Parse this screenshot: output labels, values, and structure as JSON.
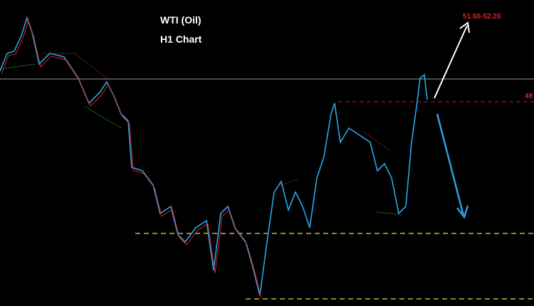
{
  "chart_data": {
    "type": "line",
    "title": "WTI (Oil)",
    "subtitle": "H1 Chart",
    "annotations": {
      "target": "51.60-52.20",
      "level": "48"
    }
  }
}
